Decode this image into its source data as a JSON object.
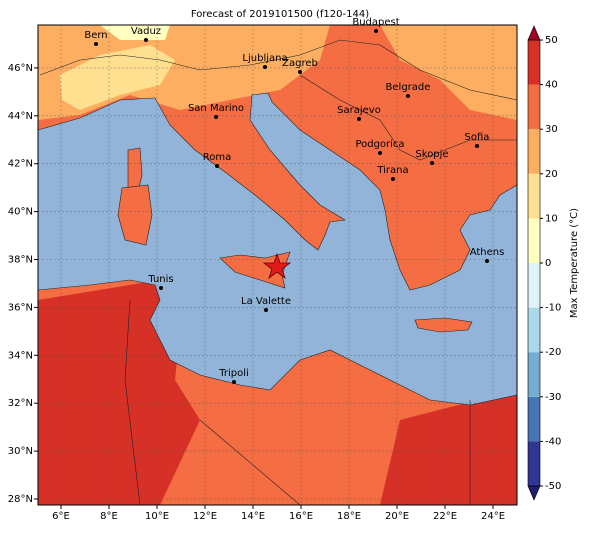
{
  "map": {
    "title": "Forecast of 2019101500 (f120-144)",
    "lon_ticks": [
      {
        "value": 6,
        "label": "6°E"
      },
      {
        "value": 8,
        "label": "8°E"
      },
      {
        "value": 10,
        "label": "10°E"
      },
      {
        "value": 12,
        "label": "12°E"
      },
      {
        "value": 14,
        "label": "14°E"
      },
      {
        "value": 16,
        "label": "16°E"
      },
      {
        "value": 18,
        "label": "18°E"
      },
      {
        "value": 20,
        "label": "20°E"
      },
      {
        "value": 22,
        "label": "22°E"
      },
      {
        "value": 24,
        "label": "24°E"
      }
    ],
    "lat_ticks": [
      {
        "value": 28,
        "label": "28°N"
      },
      {
        "value": 30,
        "label": "30°N"
      },
      {
        "value": 32,
        "label": "32°N"
      },
      {
        "value": 34,
        "label": "34°N"
      },
      {
        "value": 36,
        "label": "36°N"
      },
      {
        "value": 38,
        "label": "38°N"
      },
      {
        "value": 40,
        "label": "40°N"
      },
      {
        "value": 42,
        "label": "42°N"
      },
      {
        "value": 44,
        "label": "44°N"
      },
      {
        "value": 46,
        "label": "46°N"
      }
    ],
    "cities": [
      "Bern",
      "Vaduz",
      "Budapest",
      "Ljubljana",
      "Zagreb",
      "Belgrade",
      "San Marino",
      "Sarajevo",
      "Sofia",
      "Roma",
      "Podgorica",
      "Skopje",
      "Tirana",
      "Athens",
      "Tunis",
      "La Valette",
      "Tripoli"
    ],
    "colorbar": {
      "label": "Max Temperature (°C)",
      "ticks": [
        50,
        40,
        30,
        20,
        10,
        0,
        -10,
        -20,
        -30,
        -40,
        -50
      ],
      "colors": [
        "#313695",
        "#4575b4",
        "#74add1",
        "#abd9e9",
        "#e0f3f8",
        "#ffffbf",
        "#fee090",
        "#fdae61",
        "#f46d43",
        "#d73027"
      ]
    }
  }
}
